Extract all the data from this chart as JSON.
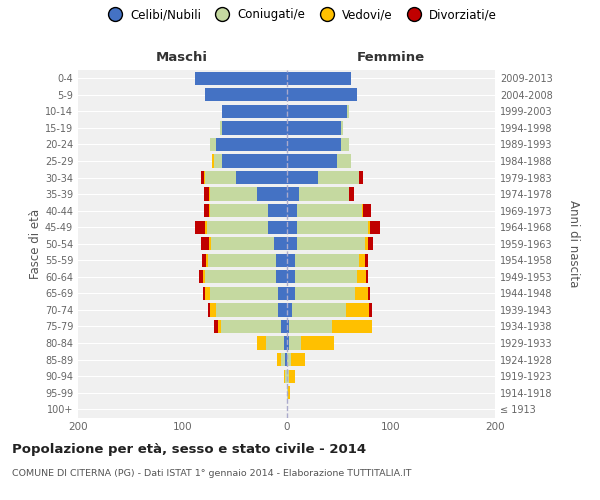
{
  "age_groups": [
    "100+",
    "95-99",
    "90-94",
    "85-89",
    "80-84",
    "75-79",
    "70-74",
    "65-69",
    "60-64",
    "55-59",
    "50-54",
    "45-49",
    "40-44",
    "35-39",
    "30-34",
    "25-29",
    "20-24",
    "15-19",
    "10-14",
    "5-9",
    "0-4"
  ],
  "birth_years": [
    "≤ 1913",
    "1914-1918",
    "1919-1923",
    "1924-1928",
    "1929-1933",
    "1934-1938",
    "1939-1943",
    "1944-1948",
    "1949-1953",
    "1954-1958",
    "1959-1963",
    "1964-1968",
    "1969-1973",
    "1974-1978",
    "1979-1983",
    "1984-1988",
    "1989-1993",
    "1994-1998",
    "1999-2003",
    "2004-2008",
    "2009-2013"
  ],
  "male": {
    "celibi": [
      0,
      0,
      0,
      1,
      2,
      5,
      8,
      8,
      10,
      10,
      12,
      18,
      18,
      28,
      48,
      62,
      68,
      62,
      62,
      78,
      88
    ],
    "coniugati": [
      0,
      0,
      1,
      4,
      18,
      58,
      60,
      65,
      68,
      65,
      60,
      58,
      55,
      45,
      30,
      8,
      5,
      2,
      0,
      0,
      0
    ],
    "vedovi": [
      0,
      0,
      1,
      4,
      8,
      3,
      5,
      5,
      2,
      2,
      2,
      2,
      1,
      1,
      1,
      1,
      0,
      0,
      0,
      0,
      0
    ],
    "divorziati": [
      0,
      0,
      0,
      0,
      0,
      4,
      2,
      2,
      4,
      4,
      8,
      10,
      5,
      5,
      3,
      0,
      0,
      0,
      0,
      0,
      0
    ]
  },
  "female": {
    "nubili": [
      0,
      0,
      0,
      0,
      2,
      2,
      5,
      8,
      8,
      8,
      10,
      10,
      10,
      12,
      30,
      48,
      52,
      52,
      58,
      68,
      62
    ],
    "coniugate": [
      0,
      1,
      2,
      4,
      12,
      42,
      52,
      58,
      60,
      62,
      65,
      68,
      62,
      48,
      40,
      14,
      8,
      2,
      2,
      0,
      0
    ],
    "vedove": [
      0,
      2,
      6,
      14,
      32,
      38,
      22,
      12,
      8,
      5,
      3,
      2,
      1,
      0,
      0,
      0,
      0,
      0,
      0,
      0,
      0
    ],
    "divorziate": [
      0,
      0,
      0,
      0,
      0,
      0,
      3,
      2,
      2,
      3,
      5,
      10,
      8,
      5,
      3,
      0,
      0,
      0,
      0,
      0,
      0
    ]
  },
  "colors": {
    "celibi": "#4472c4",
    "coniugati": "#c5d9a0",
    "vedovi": "#ffc000",
    "divorziati": "#c00000"
  },
  "xlim": 200,
  "title": "Popolazione per età, sesso e stato civile - 2014",
  "subtitle": "COMUNE DI CITERNA (PG) - Dati ISTAT 1° gennaio 2014 - Elaborazione TUTTITALIA.IT",
  "ylabel_left": "Fasce di età",
  "ylabel_right": "Anni di nascita",
  "xlabel_maschi": "Maschi",
  "xlabel_femmine": "Femmine",
  "legend_labels": [
    "Celibi/Nubili",
    "Coniugati/e",
    "Vedovi/e",
    "Divorziati/e"
  ],
  "bg_color": "#ffffff",
  "plot_bg_color": "#f0f0f0",
  "grid_color": "#ffffff",
  "center_line_color": "#aaaacc"
}
